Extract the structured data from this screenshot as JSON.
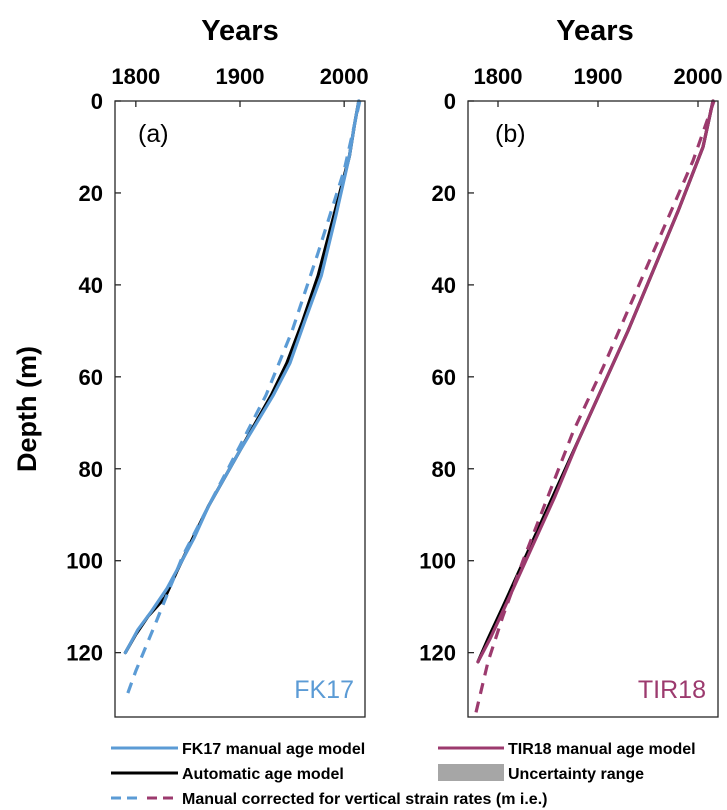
{
  "colors": {
    "fk17": "#5b9bd5",
    "tir18": "#9c3a6e",
    "auto": "#000000",
    "uncert": "#a6a6a6",
    "axis": "#262626"
  },
  "chart_data": [
    {
      "type": "line",
      "panel_label": "(a)",
      "corner_label": "FK17",
      "xlabel": "Years",
      "ylabel": "Depth (m)",
      "xlim": [
        1780,
        2020
      ],
      "ylim": [
        0,
        134
      ],
      "y_reversed": true,
      "x_ticks": [
        1800,
        1900,
        2000
      ],
      "y_ticks": [
        0,
        20,
        40,
        60,
        80,
        100,
        120
      ],
      "grid": false,
      "series": [
        {
          "name": "Automatic age model",
          "style": "solid",
          "color_key": "auto",
          "x": [
            2014,
            2010,
            2005,
            1990,
            1975,
            1960,
            1945,
            1930,
            1915,
            1900,
            1885,
            1870,
            1855,
            1840,
            1828,
            1812,
            1800,
            1790
          ],
          "y": [
            0,
            5,
            12,
            25,
            38,
            48,
            57,
            64,
            70,
            76,
            82,
            88,
            95,
            102,
            108,
            112,
            116,
            120
          ]
        },
        {
          "name": "FK17 manual age model",
          "style": "solid",
          "color_key": "fk17",
          "x": [
            2014,
            2010,
            2005,
            1992,
            1978,
            1962,
            1948,
            1932,
            1916,
            1900,
            1885,
            1870,
            1856,
            1842,
            1830,
            1815,
            1802,
            1790
          ],
          "y": [
            0,
            5,
            12,
            25,
            38,
            48,
            57,
            64,
            70,
            76,
            82,
            88,
            95,
            101,
            106,
            111,
            115,
            120
          ]
        },
        {
          "name": "Manual corrected for vertical strain rates (m i.e.)",
          "style": "dashed",
          "color_key": "fk17",
          "x": [
            2015,
            2000,
            1975,
            1950,
            1925,
            1900,
            1870,
            1845,
            1820,
            1800,
            1792
          ],
          "y": [
            0,
            15,
            33,
            50,
            64,
            75,
            88,
            99,
            113,
            124,
            129
          ]
        }
      ]
    },
    {
      "type": "line",
      "panel_label": "(b)",
      "corner_label": "TIR18",
      "xlabel": "Years",
      "ylabel": "",
      "xlim": [
        1770,
        2020
      ],
      "ylim": [
        0,
        134
      ],
      "y_reversed": true,
      "x_ticks": [
        1800,
        1900,
        2000
      ],
      "y_ticks": [
        0,
        20,
        40,
        60,
        80,
        100,
        120
      ],
      "grid": false,
      "series": [
        {
          "name": "Automatic age model",
          "style": "solid",
          "color_key": "auto",
          "x": [
            2015,
            2005,
            1980,
            1955,
            1930,
            1905,
            1880,
            1855,
            1830,
            1805,
            1790,
            1780
          ],
          "y": [
            0,
            10,
            24,
            37,
            50,
            62,
            74,
            86,
            98,
            110,
            117,
            122
          ]
        },
        {
          "name": "TIR18 manual age model",
          "style": "solid",
          "color_key": "tir18",
          "x": [
            2015,
            2005,
            1980,
            1955,
            1930,
            1905,
            1880,
            1857,
            1832,
            1807,
            1792,
            1780
          ],
          "y": [
            0,
            10,
            24,
            37,
            50,
            62,
            74,
            86,
            98,
            110,
            117,
            122
          ]
        },
        {
          "name": "Manual corrected for vertical strain rates (m i.e.)",
          "style": "dashed",
          "color_key": "tir18",
          "x": [
            2016,
            1995,
            1965,
            1935,
            1905,
            1875,
            1850,
            1825,
            1805,
            1790,
            1778
          ],
          "y": [
            0,
            13,
            28,
            43,
            58,
            72,
            86,
            100,
            112,
            122,
            133
          ]
        }
      ]
    }
  ],
  "legend": [
    {
      "label": "FK17 manual age model",
      "style": "solid",
      "color_key": "fk17"
    },
    {
      "label": "TIR18 manual age model",
      "style": "solid",
      "color_key": "tir18"
    },
    {
      "label": "Automatic age model",
      "style": "solid",
      "color_key": "auto"
    },
    {
      "label": "Uncertainty range",
      "style": "patch",
      "color_key": "uncert"
    },
    {
      "label": "Manual corrected for vertical strain rates (m i.e.)",
      "style": "dashed",
      "color_key": "fk17",
      "color_key2": "tir18"
    }
  ]
}
